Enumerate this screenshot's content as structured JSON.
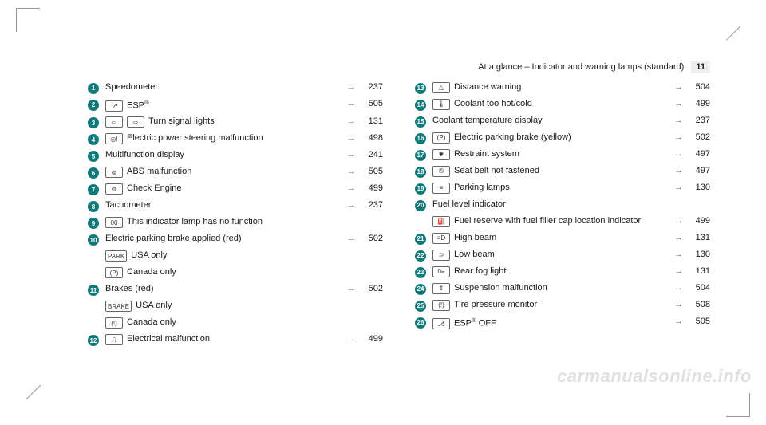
{
  "header": {
    "title": "At a glance – Indicator and warning lamps (standard)",
    "page_number": "11"
  },
  "watermark": "carmanualsonline.info",
  "arrow_glyph": "→",
  "left": [
    {
      "n": "1",
      "icons": [],
      "label": "Speedometer",
      "page": "237"
    },
    {
      "n": "2",
      "icons": [
        "⎇"
      ],
      "label": "ESP",
      "sup": "®",
      "page": "505"
    },
    {
      "n": "3",
      "icons": [
        "⇦",
        "⇨"
      ],
      "label": "Turn signal lights",
      "page": "131"
    },
    {
      "n": "4",
      "icons": [
        "◎!"
      ],
      "label": "Electric power steering malfunction",
      "page": "498"
    },
    {
      "n": "5",
      "icons": [],
      "label": "Multifunction display",
      "page": "241"
    },
    {
      "n": "6",
      "icons": [
        "⊚"
      ],
      "label": "ABS malfunction",
      "page": "505"
    },
    {
      "n": "7",
      "icons": [
        "⚙"
      ],
      "label": "Check Engine",
      "page": "499"
    },
    {
      "n": "8",
      "icons": [],
      "label": "Tachometer",
      "page": "237"
    },
    {
      "n": "9",
      "icons": [
        "00"
      ],
      "label": "This indicator lamp has no function",
      "page": ""
    },
    {
      "n": "10",
      "icons": [],
      "label": "Electric parking brake applied (red)",
      "page": "502"
    },
    {
      "n": "",
      "icons": [
        "PARK"
      ],
      "label": "USA only",
      "page": ""
    },
    {
      "n": "",
      "icons": [
        "(P)"
      ],
      "label": "Canada only",
      "page": ""
    },
    {
      "n": "11",
      "icons": [],
      "label": "Brakes (red)",
      "page": "502"
    },
    {
      "n": "",
      "icons": [
        "BRAKE"
      ],
      "label": "USA only",
      "page": ""
    },
    {
      "n": "",
      "icons": [
        "(!)"
      ],
      "label": "Canada only",
      "page": ""
    },
    {
      "n": "12",
      "icons": [
        "⎍"
      ],
      "label": "Electrical malfunction",
      "page": "499"
    }
  ],
  "right": [
    {
      "n": "13",
      "icons": [
        "△"
      ],
      "label": "Distance warning",
      "page": "504"
    },
    {
      "n": "14",
      "icons": [
        "🌡"
      ],
      "label": "Coolant too hot/cold",
      "page": "499"
    },
    {
      "n": "15",
      "icons": [],
      "label": "Coolant temperature display",
      "page": "237"
    },
    {
      "n": "16",
      "icons": [
        "(P)"
      ],
      "label": "Electric parking brake (yellow)",
      "page": "502"
    },
    {
      "n": "17",
      "icons": [
        "✱"
      ],
      "label": "Restraint system",
      "page": "497"
    },
    {
      "n": "18",
      "icons": [
        "✇"
      ],
      "label": "Seat belt not fastened",
      "page": "497"
    },
    {
      "n": "19",
      "icons": [
        "≡"
      ],
      "label": "Parking lamps",
      "page": "130"
    },
    {
      "n": "20",
      "icons": [],
      "label": "Fuel level indicator",
      "page": ""
    },
    {
      "n": "",
      "icons": [
        "⛽"
      ],
      "label": "Fuel reserve with fuel filler cap location indicator",
      "page": "499"
    },
    {
      "n": "21",
      "icons": [
        "≡D"
      ],
      "label": "High beam",
      "page": "131"
    },
    {
      "n": "22",
      "icons": [
        "⊃"
      ],
      "label": "Low beam",
      "page": "130"
    },
    {
      "n": "23",
      "icons": [
        "0≡"
      ],
      "label": "Rear fog light",
      "page": "131"
    },
    {
      "n": "24",
      "icons": [
        "⇕"
      ],
      "label": "Suspension malfunction",
      "page": "504"
    },
    {
      "n": "25",
      "icons": [
        "(!)"
      ],
      "label": "Tire pressure monitor",
      "page": "508"
    },
    {
      "n": "26",
      "icons": [
        "⎇"
      ],
      "label": "ESP",
      "sup": "®",
      "label2": " OFF",
      "page": "505"
    }
  ]
}
